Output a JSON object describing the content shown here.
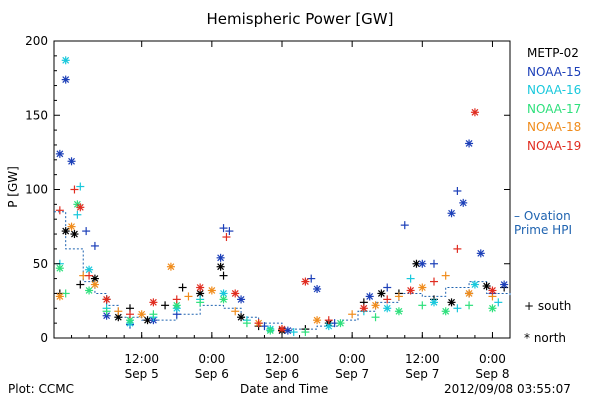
{
  "colors": {
    "METP-02": "#000000",
    "NOAA-15": "#1c3fb8",
    "NOAA-16": "#18c8dc",
    "NOAA-17": "#2ee07c",
    "NOAA-18": "#f08c1c",
    "NOAA-19": "#e02c20",
    "ovation": "#1f63b0"
  },
  "labels": {
    "plot_by": "Plot: CCMC",
    "timestamp": "2012/09/08 03:55:07",
    "south_symbol": "+ south",
    "north_symbol": "* north",
    "ovation_line1": "– Ovation",
    "ovation_line2": "Prime HPI"
  },
  "legend": [
    "METP-02",
    "NOAA-15",
    "NOAA-16",
    "NOAA-17",
    "NOAA-18",
    "NOAA-19"
  ],
  "chart_data": {
    "type": "scatter",
    "title": "Hemispheric Power [GW]",
    "xlabel": "Date and Time",
    "ylabel": "P [GW]",
    "ylim": [
      0,
      200
    ],
    "yticks": [
      0,
      50,
      100,
      150,
      200
    ],
    "xlim": [
      "2012-09-04 21:00",
      "2012-09-08 03:00"
    ],
    "xticks": [
      {
        "t": "2012-09-05 12:00",
        "top": "12:00",
        "bottom": "Sep 5"
      },
      {
        "t": "2012-09-06 00:00",
        "top": "0:00",
        "bottom": "Sep 6"
      },
      {
        "t": "2012-09-06 12:00",
        "top": "12:00",
        "bottom": "Sep 6"
      },
      {
        "t": "2012-09-07 00:00",
        "top": "0:00",
        "bottom": "Sep 7"
      },
      {
        "t": "2012-09-07 12:00",
        "top": "12:00",
        "bottom": "Sep 7"
      },
      {
        "t": "2012-09-08 00:00",
        "top": "0:00",
        "bottom": "Sep 8"
      }
    ],
    "series": [
      {
        "name": "METP-02",
        "points": [
          [
            "2012-09-04 22:00",
            30,
            "+"
          ],
          [
            "2012-09-04 23:00",
            72,
            "*"
          ],
          [
            "2012-09-05 00:30",
            70,
            "*"
          ],
          [
            "2012-09-05 01:30",
            36,
            "+"
          ],
          [
            "2012-09-05 04:00",
            40,
            "*"
          ],
          [
            "2012-09-05 06:00",
            26,
            "+"
          ],
          [
            "2012-09-05 08:00",
            14,
            "*"
          ],
          [
            "2012-09-05 10:00",
            20,
            "+"
          ],
          [
            "2012-09-05 13:00",
            12,
            "*"
          ],
          [
            "2012-09-05 16:00",
            22,
            "+"
          ],
          [
            "2012-09-05 19:00",
            34,
            "+"
          ],
          [
            "2012-09-05 22:00",
            30,
            "*"
          ],
          [
            "2012-09-06 01:30",
            48,
            "*"
          ],
          [
            "2012-09-06 02:00",
            42,
            "+"
          ],
          [
            "2012-09-06 05:00",
            14,
            "*"
          ],
          [
            "2012-09-06 08:00",
            8,
            "+"
          ],
          [
            "2012-09-06 12:00",
            5,
            "*"
          ],
          [
            "2012-09-06 16:00",
            6,
            "+"
          ],
          [
            "2012-09-06 20:00",
            10,
            "*"
          ],
          [
            "2012-09-07 02:00",
            24,
            "+"
          ],
          [
            "2012-09-07 05:00",
            30,
            "*"
          ],
          [
            "2012-09-07 08:00",
            30,
            "+"
          ],
          [
            "2012-09-07 11:00",
            50,
            "*"
          ],
          [
            "2012-09-07 14:00",
            26,
            "+"
          ],
          [
            "2012-09-07 17:00",
            24,
            "*"
          ],
          [
            "2012-09-07 20:00",
            30,
            "+"
          ],
          [
            "2012-09-07 23:00",
            35,
            "*"
          ],
          [
            "2012-09-08 02:00",
            34,
            "+"
          ]
        ]
      },
      {
        "name": "NOAA-15",
        "points": [
          [
            "2012-09-04 22:00",
            124,
            "*"
          ],
          [
            "2012-09-04 23:00",
            174,
            "*"
          ],
          [
            "2012-09-05 00:00",
            119,
            "*"
          ],
          [
            "2012-09-05 02:30",
            72,
            "+"
          ],
          [
            "2012-09-05 04:00",
            62,
            "+"
          ],
          [
            "2012-09-05 06:00",
            15,
            "*"
          ],
          [
            "2012-09-05 10:00",
            9,
            "+"
          ],
          [
            "2012-09-05 14:00",
            12,
            "*"
          ],
          [
            "2012-09-05 18:00",
            16,
            "+"
          ],
          [
            "2012-09-06 01:30",
            54,
            "*"
          ],
          [
            "2012-09-06 02:00",
            74,
            "+"
          ],
          [
            "2012-09-06 03:00",
            72,
            "+"
          ],
          [
            "2012-09-06 05:00",
            26,
            "*"
          ],
          [
            "2012-09-06 09:00",
            8,
            "+"
          ],
          [
            "2012-09-06 13:00",
            5,
            "*"
          ],
          [
            "2012-09-06 17:00",
            40,
            "+"
          ],
          [
            "2012-09-06 18:00",
            33,
            "*"
          ],
          [
            "2012-09-06 21:00",
            10,
            "+"
          ],
          [
            "2012-09-07 03:00",
            28,
            "*"
          ],
          [
            "2012-09-07 06:00",
            34,
            "+"
          ],
          [
            "2012-09-07 09:00",
            76,
            "+"
          ],
          [
            "2012-09-07 12:00",
            50,
            "*"
          ],
          [
            "2012-09-07 14:00",
            50,
            "+"
          ],
          [
            "2012-09-07 17:00",
            84,
            "*"
          ],
          [
            "2012-09-07 18:00",
            99,
            "+"
          ],
          [
            "2012-09-07 19:00",
            91,
            "*"
          ],
          [
            "2012-09-07 20:00",
            131,
            "*"
          ],
          [
            "2012-09-07 22:00",
            57,
            "*"
          ],
          [
            "2012-09-08 00:00",
            30,
            "+"
          ],
          [
            "2012-09-08 02:00",
            36,
            "*"
          ]
        ]
      },
      {
        "name": "NOAA-16",
        "points": [
          [
            "2012-09-04 22:00",
            50,
            "+"
          ],
          [
            "2012-09-04 23:00",
            187,
            "*"
          ],
          [
            "2012-09-05 01:00",
            83,
            "+"
          ],
          [
            "2012-09-05 01:30",
            102,
            "+"
          ],
          [
            "2012-09-05 03:00",
            46,
            "*"
          ],
          [
            "2012-09-05 06:00",
            20,
            "+"
          ],
          [
            "2012-09-05 10:00",
            10,
            "*"
          ],
          [
            "2012-09-05 14:00",
            14,
            "+"
          ],
          [
            "2012-09-05 18:00",
            20,
            "*"
          ],
          [
            "2012-09-05 22:00",
            26,
            "+"
          ],
          [
            "2012-09-06 02:00",
            30,
            "*"
          ],
          [
            "2012-09-06 06:00",
            12,
            "+"
          ],
          [
            "2012-09-06 10:00",
            6,
            "*"
          ],
          [
            "2012-09-06 14:00",
            4,
            "+"
          ],
          [
            "2012-09-06 20:00",
            8,
            "*"
          ],
          [
            "2012-09-07 02:00",
            18,
            "+"
          ],
          [
            "2012-09-07 06:00",
            20,
            "*"
          ],
          [
            "2012-09-07 10:00",
            40,
            "+"
          ],
          [
            "2012-09-07 14:00",
            24,
            "*"
          ],
          [
            "2012-09-07 18:00",
            20,
            "+"
          ],
          [
            "2012-09-07 21:00",
            36,
            "*"
          ],
          [
            "2012-09-08 01:00",
            24,
            "+"
          ]
        ]
      },
      {
        "name": "NOAA-17",
        "points": [
          [
            "2012-09-04 22:00",
            47,
            "*"
          ],
          [
            "2012-09-04 23:00",
            30,
            "+"
          ],
          [
            "2012-09-05 01:00",
            90,
            "*"
          ],
          [
            "2012-09-05 03:00",
            32,
            "*"
          ],
          [
            "2012-09-05 06:00",
            18,
            "+"
          ],
          [
            "2012-09-05 10:00",
            12,
            "*"
          ],
          [
            "2012-09-05 14:00",
            16,
            "+"
          ],
          [
            "2012-09-05 18:00",
            22,
            "*"
          ],
          [
            "2012-09-05 22:00",
            24,
            "+"
          ],
          [
            "2012-09-06 02:00",
            26,
            "*"
          ],
          [
            "2012-09-06 06:00",
            10,
            "+"
          ],
          [
            "2012-09-06 10:00",
            5,
            "*"
          ],
          [
            "2012-09-06 16:00",
            4,
            "+"
          ],
          [
            "2012-09-06 22:00",
            10,
            "*"
          ],
          [
            "2012-09-07 04:00",
            14,
            "+"
          ],
          [
            "2012-09-07 08:00",
            18,
            "*"
          ],
          [
            "2012-09-07 12:00",
            22,
            "+"
          ],
          [
            "2012-09-07 16:00",
            18,
            "*"
          ],
          [
            "2012-09-07 20:00",
            22,
            "+"
          ],
          [
            "2012-09-08 00:00",
            20,
            "*"
          ]
        ]
      },
      {
        "name": "NOAA-18",
        "points": [
          [
            "2012-09-04 22:00",
            28,
            "*"
          ],
          [
            "2012-09-05 00:00",
            75,
            "*"
          ],
          [
            "2012-09-05 02:00",
            42,
            "+"
          ],
          [
            "2012-09-05 04:00",
            36,
            "*"
          ],
          [
            "2012-09-05 08:00",
            18,
            "+"
          ],
          [
            "2012-09-05 12:00",
            16,
            "*"
          ],
          [
            "2012-09-05 17:00",
            48,
            "*"
          ],
          [
            "2012-09-05 20:00",
            28,
            "+"
          ],
          [
            "2012-09-06 00:00",
            32,
            "*"
          ],
          [
            "2012-09-06 04:00",
            18,
            "+"
          ],
          [
            "2012-09-06 08:00",
            10,
            "*"
          ],
          [
            "2012-09-06 12:00",
            6,
            "+"
          ],
          [
            "2012-09-06 18:00",
            12,
            "*"
          ],
          [
            "2012-09-07 00:00",
            16,
            "+"
          ],
          [
            "2012-09-07 04:00",
            22,
            "*"
          ],
          [
            "2012-09-07 08:00",
            28,
            "+"
          ],
          [
            "2012-09-07 12:00",
            34,
            "*"
          ],
          [
            "2012-09-07 16:00",
            42,
            "+"
          ],
          [
            "2012-09-07 20:00",
            30,
            "*"
          ],
          [
            "2012-09-08 00:00",
            28,
            "+"
          ]
        ]
      },
      {
        "name": "NOAA-19",
        "points": [
          [
            "2012-09-04 22:00",
            86,
            "+"
          ],
          [
            "2012-09-05 00:30",
            100,
            "+"
          ],
          [
            "2012-09-05 01:30",
            88,
            "*"
          ],
          [
            "2012-09-05 03:00",
            42,
            "+"
          ],
          [
            "2012-09-05 06:00",
            26,
            "*"
          ],
          [
            "2012-09-05 10:00",
            16,
            "+"
          ],
          [
            "2012-09-05 14:00",
            24,
            "*"
          ],
          [
            "2012-09-05 18:00",
            26,
            "+"
          ],
          [
            "2012-09-05 22:00",
            34,
            "*"
          ],
          [
            "2012-09-06 02:30",
            68,
            "+"
          ],
          [
            "2012-09-06 04:00",
            30,
            "*"
          ],
          [
            "2012-09-06 08:00",
            10,
            "+"
          ],
          [
            "2012-09-06 12:00",
            6,
            "*"
          ],
          [
            "2012-09-06 16:00",
            38,
            "*"
          ],
          [
            "2012-09-06 20:00",
            12,
            "+"
          ],
          [
            "2012-09-07 02:00",
            20,
            "*"
          ],
          [
            "2012-09-07 06:00",
            26,
            "+"
          ],
          [
            "2012-09-07 10:00",
            32,
            "*"
          ],
          [
            "2012-09-07 14:00",
            38,
            "+"
          ],
          [
            "2012-09-07 18:00",
            60,
            "+"
          ],
          [
            "2012-09-07 21:00",
            152,
            "*"
          ],
          [
            "2012-09-08 00:00",
            32,
            "*"
          ]
        ]
      }
    ],
    "ovation_prime_hpi": {
      "name": "Ovation Prime HPI",
      "times": [
        "2012-09-04 21:00",
        "2012-09-04 23:00",
        "2012-09-05 02:00",
        "2012-09-05 04:00",
        "2012-09-05 06:00",
        "2012-09-05 08:00",
        "2012-09-05 12:00",
        "2012-09-05 18:00",
        "2012-09-05 22:00",
        "2012-09-06 02:00",
        "2012-09-06 05:00",
        "2012-09-06 08:00",
        "2012-09-06 12:00",
        "2012-09-06 18:00",
        "2012-09-06 22:00",
        "2012-09-07 01:00",
        "2012-09-07 04:00",
        "2012-09-07 08:00",
        "2012-09-07 12:00",
        "2012-09-07 16:00",
        "2012-09-07 20:00",
        "2012-09-07 23:00",
        "2012-09-08 03:00"
      ],
      "values": [
        85,
        60,
        38,
        30,
        22,
        14,
        12,
        16,
        22,
        20,
        14,
        10,
        6,
        8,
        12,
        18,
        24,
        30,
        28,
        34,
        38,
        30,
        28
      ]
    }
  }
}
